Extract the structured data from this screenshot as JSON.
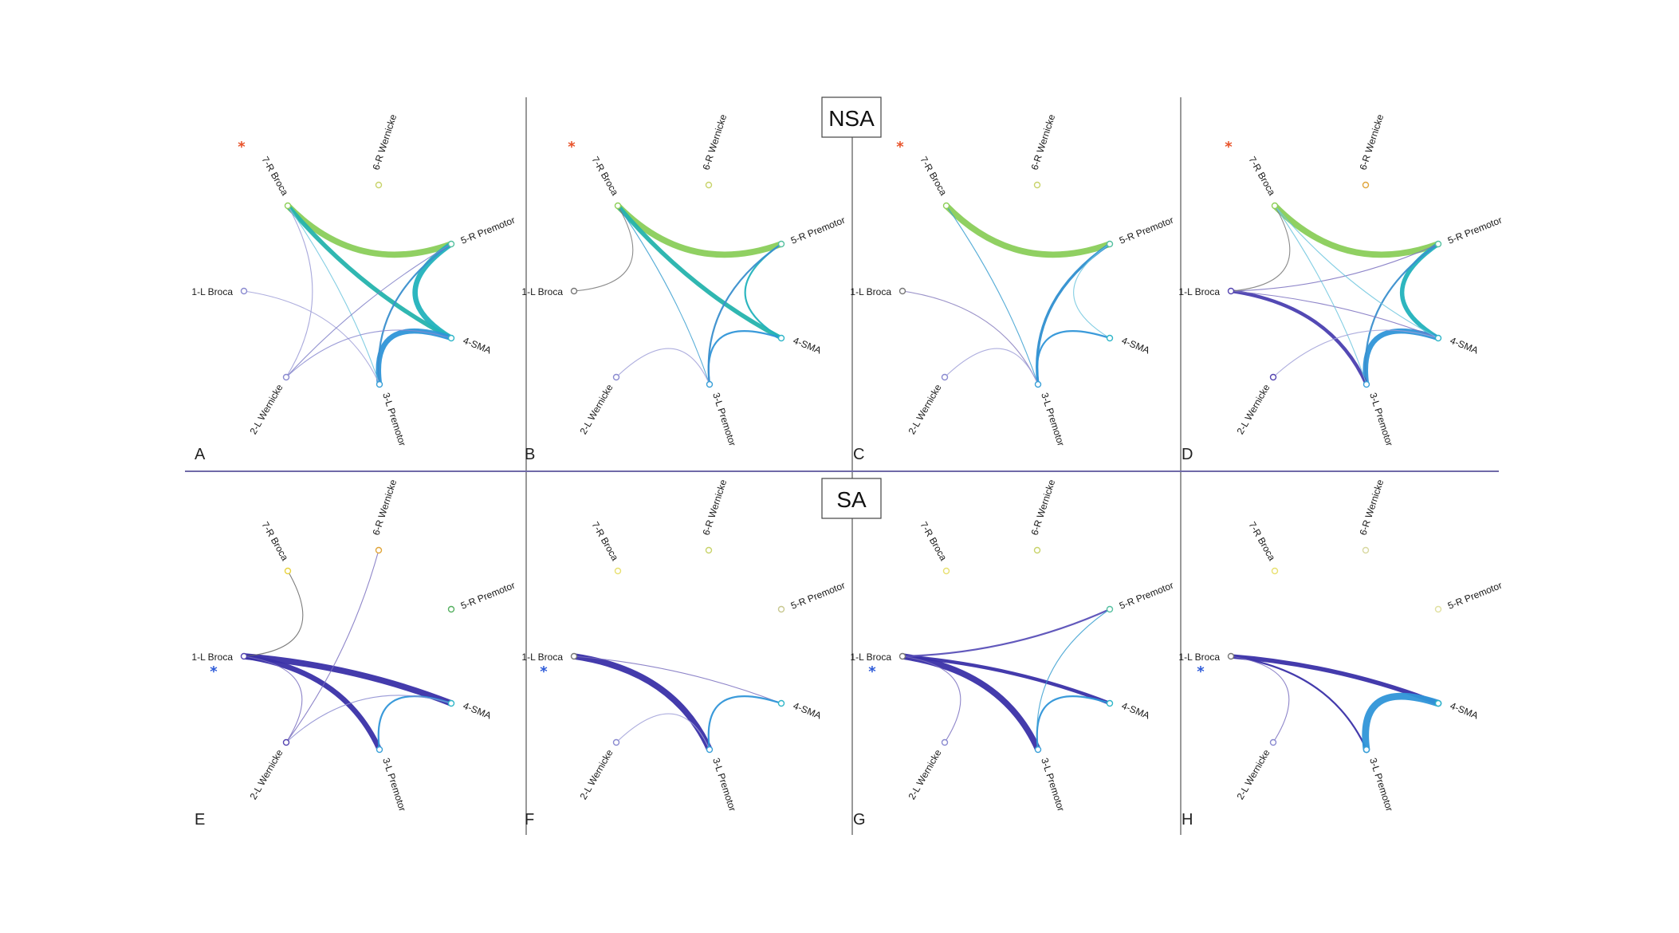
{
  "sections": [
    {
      "title": "NSA"
    },
    {
      "title": "SA"
    }
  ],
  "node_labels": [
    "1-L Broca",
    "2-L Wernicke",
    "3-L Premotor",
    "4-SMA",
    "5-R Premotor",
    "6-R Wernicke",
    "7-R Broca"
  ],
  "panels": [
    {
      "letter": "A",
      "star": {
        "symbol": "*",
        "at": "7-R Broca",
        "color": "#e8532a"
      },
      "nodes": [
        {
          "label": "1-L Broca",
          "color": "#8a8ad0"
        },
        {
          "label": "2-L Wernicke",
          "color": "#8a8ad0"
        },
        {
          "label": "3-L Premotor",
          "color": "#3aa0d8"
        },
        {
          "label": "4-SMA",
          "color": "#2fb5c8"
        },
        {
          "label": "5-R Premotor",
          "color": "#55c0a0"
        },
        {
          "label": "6-R Wernicke",
          "color": "#c8d36a"
        },
        {
          "label": "7-R Broca",
          "color": "#8fd05a"
        }
      ],
      "edges": [
        {
          "from": "7-R Broca",
          "to": "5-R Premotor",
          "weight": 7,
          "color": "#8acd5a"
        },
        {
          "from": "7-R Broca",
          "to": "4-SMA",
          "weight": 5,
          "color": "#25b3ad"
        },
        {
          "from": "5-R Premotor",
          "to": "4-SMA",
          "weight": 6,
          "color": "#22b2bc"
        },
        {
          "from": "4-SMA",
          "to": "3-L Premotor",
          "weight": 6,
          "color": "#2f95d8"
        },
        {
          "from": "5-R Premotor",
          "to": "3-L Premotor",
          "weight": 2,
          "color": "#3a8fce"
        },
        {
          "from": "7-R Broca",
          "to": "3-L Premotor",
          "weight": 1,
          "color": "#6ec6de"
        },
        {
          "from": "7-R Broca",
          "to": "2-L Wernicke",
          "weight": 1,
          "color": "#9a9ad6"
        },
        {
          "from": "1-L Broca",
          "to": "3-L Premotor",
          "weight": 1,
          "color": "#a0a0d8"
        },
        {
          "from": "2-L Wernicke",
          "to": "4-SMA",
          "weight": 1,
          "color": "#8a8ad0"
        },
        {
          "from": "2-L Wernicke",
          "to": "5-R Premotor",
          "weight": 1,
          "color": "#8080c8"
        }
      ]
    },
    {
      "letter": "B",
      "star": {
        "symbol": "*",
        "at": "7-R Broca",
        "color": "#e8532a"
      },
      "nodes": [
        {
          "label": "1-L Broca",
          "color": "#777777"
        },
        {
          "label": "2-L Wernicke",
          "color": "#8a8ad0"
        },
        {
          "label": "3-L Premotor",
          "color": "#3aa0d8"
        },
        {
          "label": "4-SMA",
          "color": "#2fb5c8"
        },
        {
          "label": "5-R Premotor",
          "color": "#55c0a0"
        },
        {
          "label": "6-R Wernicke",
          "color": "#c8d36a"
        },
        {
          "label": "7-R Broca",
          "color": "#8fd05a"
        }
      ],
      "edges": [
        {
          "from": "7-R Broca",
          "to": "5-R Premotor",
          "weight": 7,
          "color": "#8acd5a"
        },
        {
          "from": "7-R Broca",
          "to": "4-SMA",
          "weight": 5,
          "color": "#25b3ad"
        },
        {
          "from": "5-R Premotor",
          "to": "4-SMA",
          "weight": 2,
          "color": "#22b2bc"
        },
        {
          "from": "4-SMA",
          "to": "3-L Premotor",
          "weight": 2,
          "color": "#2f95d8"
        },
        {
          "from": "5-R Premotor",
          "to": "3-L Premotor",
          "weight": 2,
          "color": "#3a8fce"
        },
        {
          "from": "7-R Broca",
          "to": "3-L Premotor",
          "weight": 1,
          "color": "#3a9fd0"
        },
        {
          "from": "7-R Broca",
          "to": "1-L Broca",
          "weight": 1,
          "color": "#777777"
        },
        {
          "from": "2-L Wernicke",
          "to": "3-L Premotor",
          "weight": 1,
          "color": "#a0a0d8"
        }
      ]
    },
    {
      "letter": "C",
      "star": {
        "symbol": "*",
        "at": "7-R Broca",
        "color": "#e8532a"
      },
      "nodes": [
        {
          "label": "1-L Broca",
          "color": "#777777"
        },
        {
          "label": "2-L Wernicke",
          "color": "#8a8ad0"
        },
        {
          "label": "3-L Premotor",
          "color": "#3aa0d8"
        },
        {
          "label": "4-SMA",
          "color": "#2fb5c8"
        },
        {
          "label": "5-R Premotor",
          "color": "#55c0a0"
        },
        {
          "label": "6-R Wernicke",
          "color": "#c8d36a"
        },
        {
          "label": "7-R Broca",
          "color": "#8fd05a"
        }
      ],
      "edges": [
        {
          "from": "7-R Broca",
          "to": "5-R Premotor",
          "weight": 7,
          "color": "#8acd5a"
        },
        {
          "from": "5-R Premotor",
          "to": "3-L Premotor",
          "weight": 3,
          "color": "#2f8fd0"
        },
        {
          "from": "5-R Premotor",
          "to": "4-SMA",
          "weight": 1,
          "color": "#6ec6de"
        },
        {
          "from": "4-SMA",
          "to": "3-L Premotor",
          "weight": 2,
          "color": "#2f95d8"
        },
        {
          "from": "7-R Broca",
          "to": "3-L Premotor",
          "weight": 1,
          "color": "#3a9fd0"
        },
        {
          "from": "1-L Broca",
          "to": "3-L Premotor",
          "weight": 1,
          "color": "#8a80c0"
        },
        {
          "from": "2-L Wernicke",
          "to": "3-L Premotor",
          "weight": 1,
          "color": "#a0a0d8"
        }
      ]
    },
    {
      "letter": "D",
      "star": {
        "symbol": "*",
        "at": "7-R Broca",
        "color": "#e8532a"
      },
      "nodes": [
        {
          "label": "1-L Broca",
          "color": "#5545b0"
        },
        {
          "label": "2-L Wernicke",
          "color": "#5545b0"
        },
        {
          "label": "3-L Premotor",
          "color": "#3aa0d8"
        },
        {
          "label": "4-SMA",
          "color": "#2fb5c8"
        },
        {
          "label": "5-R Premotor",
          "color": "#55c0a0"
        },
        {
          "label": "6-R Wernicke",
          "color": "#e0a53a"
        },
        {
          "label": "7-R Broca",
          "color": "#8fd05a"
        }
      ],
      "edges": [
        {
          "from": "7-R Broca",
          "to": "5-R Premotor",
          "weight": 7,
          "color": "#8acd5a"
        },
        {
          "from": "5-R Premotor",
          "to": "4-SMA",
          "weight": 5,
          "color": "#22b2bc"
        },
        {
          "from": "4-SMA",
          "to": "3-L Premotor",
          "weight": 6,
          "color": "#2f95d8"
        },
        {
          "from": "5-R Premotor",
          "to": "3-L Premotor",
          "weight": 2,
          "color": "#3a8fce"
        },
        {
          "from": "1-L Broca",
          "to": "3-L Premotor",
          "weight": 4,
          "color": "#4a3fb0"
        },
        {
          "from": "1-L Broca",
          "to": "5-R Premotor",
          "weight": 1,
          "color": "#7a70c0"
        },
        {
          "from": "1-L Broca",
          "to": "4-SMA",
          "weight": 1,
          "color": "#7a70c0"
        },
        {
          "from": "7-R Broca",
          "to": "1-L Broca",
          "weight": 1,
          "color": "#777777"
        },
        {
          "from": "7-R Broca",
          "to": "4-SMA",
          "weight": 1,
          "color": "#6ec6de"
        },
        {
          "from": "7-R Broca",
          "to": "3-L Premotor",
          "weight": 1,
          "color": "#6ec6de"
        },
        {
          "from": "2-L Wernicke",
          "to": "4-SMA",
          "weight": 1,
          "color": "#a0a0d8"
        }
      ]
    },
    {
      "letter": "E",
      "star": {
        "symbol": "*",
        "at": "1-L Broca",
        "color": "#2d5ad8"
      },
      "nodes": [
        {
          "label": "1-L Broca",
          "color": "#5545b0"
        },
        {
          "label": "2-L Wernicke",
          "color": "#5545b0"
        },
        {
          "label": "3-L Premotor",
          "color": "#3aa0d8"
        },
        {
          "label": "4-SMA",
          "color": "#2fb5c8"
        },
        {
          "label": "5-R Premotor",
          "color": "#55b060"
        },
        {
          "label": "6-R Wernicke",
          "color": "#e0a53a"
        },
        {
          "label": "7-R Broca",
          "color": "#e8d340"
        }
      ],
      "edges": [
        {
          "from": "1-L Broca",
          "to": "4-SMA",
          "weight": 7,
          "color": "#3a30a8"
        },
        {
          "from": "1-L Broca",
          "to": "3-L Premotor",
          "weight": 6,
          "color": "#3a30a8"
        },
        {
          "from": "4-SMA",
          "to": "3-L Premotor",
          "weight": 2,
          "color": "#2f95d8"
        },
        {
          "from": "1-L Broca",
          "to": "7-R Broca",
          "weight": 1,
          "color": "#666666"
        },
        {
          "from": "1-L Broca",
          "to": "2-L Wernicke",
          "weight": 1,
          "color": "#7a70c0"
        },
        {
          "from": "2-L Wernicke",
          "to": "6-R Wernicke",
          "weight": 1,
          "color": "#7a70c0"
        },
        {
          "from": "2-L Wernicke",
          "to": "4-SMA",
          "weight": 1,
          "color": "#8a8ad0"
        }
      ]
    },
    {
      "letter": "F",
      "star": {
        "symbol": "*",
        "at": "1-L Broca",
        "color": "#2d5ad8"
      },
      "nodes": [
        {
          "label": "1-L Broca",
          "color": "#777777"
        },
        {
          "label": "2-L Wernicke",
          "color": "#8a8ad0"
        },
        {
          "label": "3-L Premotor",
          "color": "#3aa0d8"
        },
        {
          "label": "4-SMA",
          "color": "#2fb5c8"
        },
        {
          "label": "5-R Premotor",
          "color": "#c8c890"
        },
        {
          "label": "6-R Wernicke",
          "color": "#c8d36a"
        },
        {
          "label": "7-R Broca",
          "color": "#e8e070"
        }
      ],
      "edges": [
        {
          "from": "1-L Broca",
          "to": "3-L Premotor",
          "weight": 7,
          "color": "#3a30a8"
        },
        {
          "from": "1-L Broca",
          "to": "4-SMA",
          "weight": 1,
          "color": "#7a70c0"
        },
        {
          "from": "4-SMA",
          "to": "3-L Premotor",
          "weight": 2,
          "color": "#2f95d8"
        },
        {
          "from": "2-L Wernicke",
          "to": "3-L Premotor",
          "weight": 1,
          "color": "#a0a0d8"
        }
      ]
    },
    {
      "letter": "G",
      "star": {
        "symbol": "*",
        "at": "1-L Broca",
        "color": "#2d5ad8"
      },
      "nodes": [
        {
          "label": "1-L Broca",
          "color": "#777777"
        },
        {
          "label": "2-L Wernicke",
          "color": "#8a8ad0"
        },
        {
          "label": "3-L Premotor",
          "color": "#3aa0d8"
        },
        {
          "label": "4-SMA",
          "color": "#2fb5c8"
        },
        {
          "label": "5-R Premotor",
          "color": "#55c0a0"
        },
        {
          "label": "6-R Wernicke",
          "color": "#c8d36a"
        },
        {
          "label": "7-R Broca",
          "color": "#e8e070"
        }
      ],
      "edges": [
        {
          "from": "1-L Broca",
          "to": "3-L Premotor",
          "weight": 7,
          "color": "#3a30a8"
        },
        {
          "from": "1-L Broca",
          "to": "4-SMA",
          "weight": 4,
          "color": "#3a30a8"
        },
        {
          "from": "1-L Broca",
          "to": "5-R Premotor",
          "weight": 2,
          "color": "#5a50b8"
        },
        {
          "from": "4-SMA",
          "to": "3-L Premotor",
          "weight": 2,
          "color": "#2f95d8"
        },
        {
          "from": "5-R Premotor",
          "to": "3-L Premotor",
          "weight": 1,
          "color": "#3a9fd0"
        },
        {
          "from": "1-L Broca",
          "to": "2-L Wernicke",
          "weight": 1,
          "color": "#7a70c0"
        }
      ]
    },
    {
      "letter": "H",
      "star": {
        "symbol": "*",
        "at": "1-L Broca",
        "color": "#2d5ad8"
      },
      "nodes": [
        {
          "label": "1-L Broca",
          "color": "#777777"
        },
        {
          "label": "2-L Wernicke",
          "color": "#8a8ad0"
        },
        {
          "label": "3-L Premotor",
          "color": "#3aa0d8"
        },
        {
          "label": "4-SMA",
          "color": "#2fb5c8"
        },
        {
          "label": "5-R Premotor",
          "color": "#e0e0a0"
        },
        {
          "label": "6-R Wernicke",
          "color": "#d8d8a0"
        },
        {
          "label": "7-R Broca",
          "color": "#e8e070"
        }
      ],
      "edges": [
        {
          "from": "1-L Broca",
          "to": "4-SMA",
          "weight": 5,
          "color": "#3a30a8"
        },
        {
          "from": "1-L Broca",
          "to": "3-L Premotor",
          "weight": 2,
          "color": "#3a30a8"
        },
        {
          "from": "4-SMA",
          "to": "3-L Premotor",
          "weight": 8,
          "color": "#2f95d8"
        },
        {
          "from": "1-L Broca",
          "to": "2-L Wernicke",
          "weight": 1,
          "color": "#7a70c0"
        }
      ]
    }
  ]
}
